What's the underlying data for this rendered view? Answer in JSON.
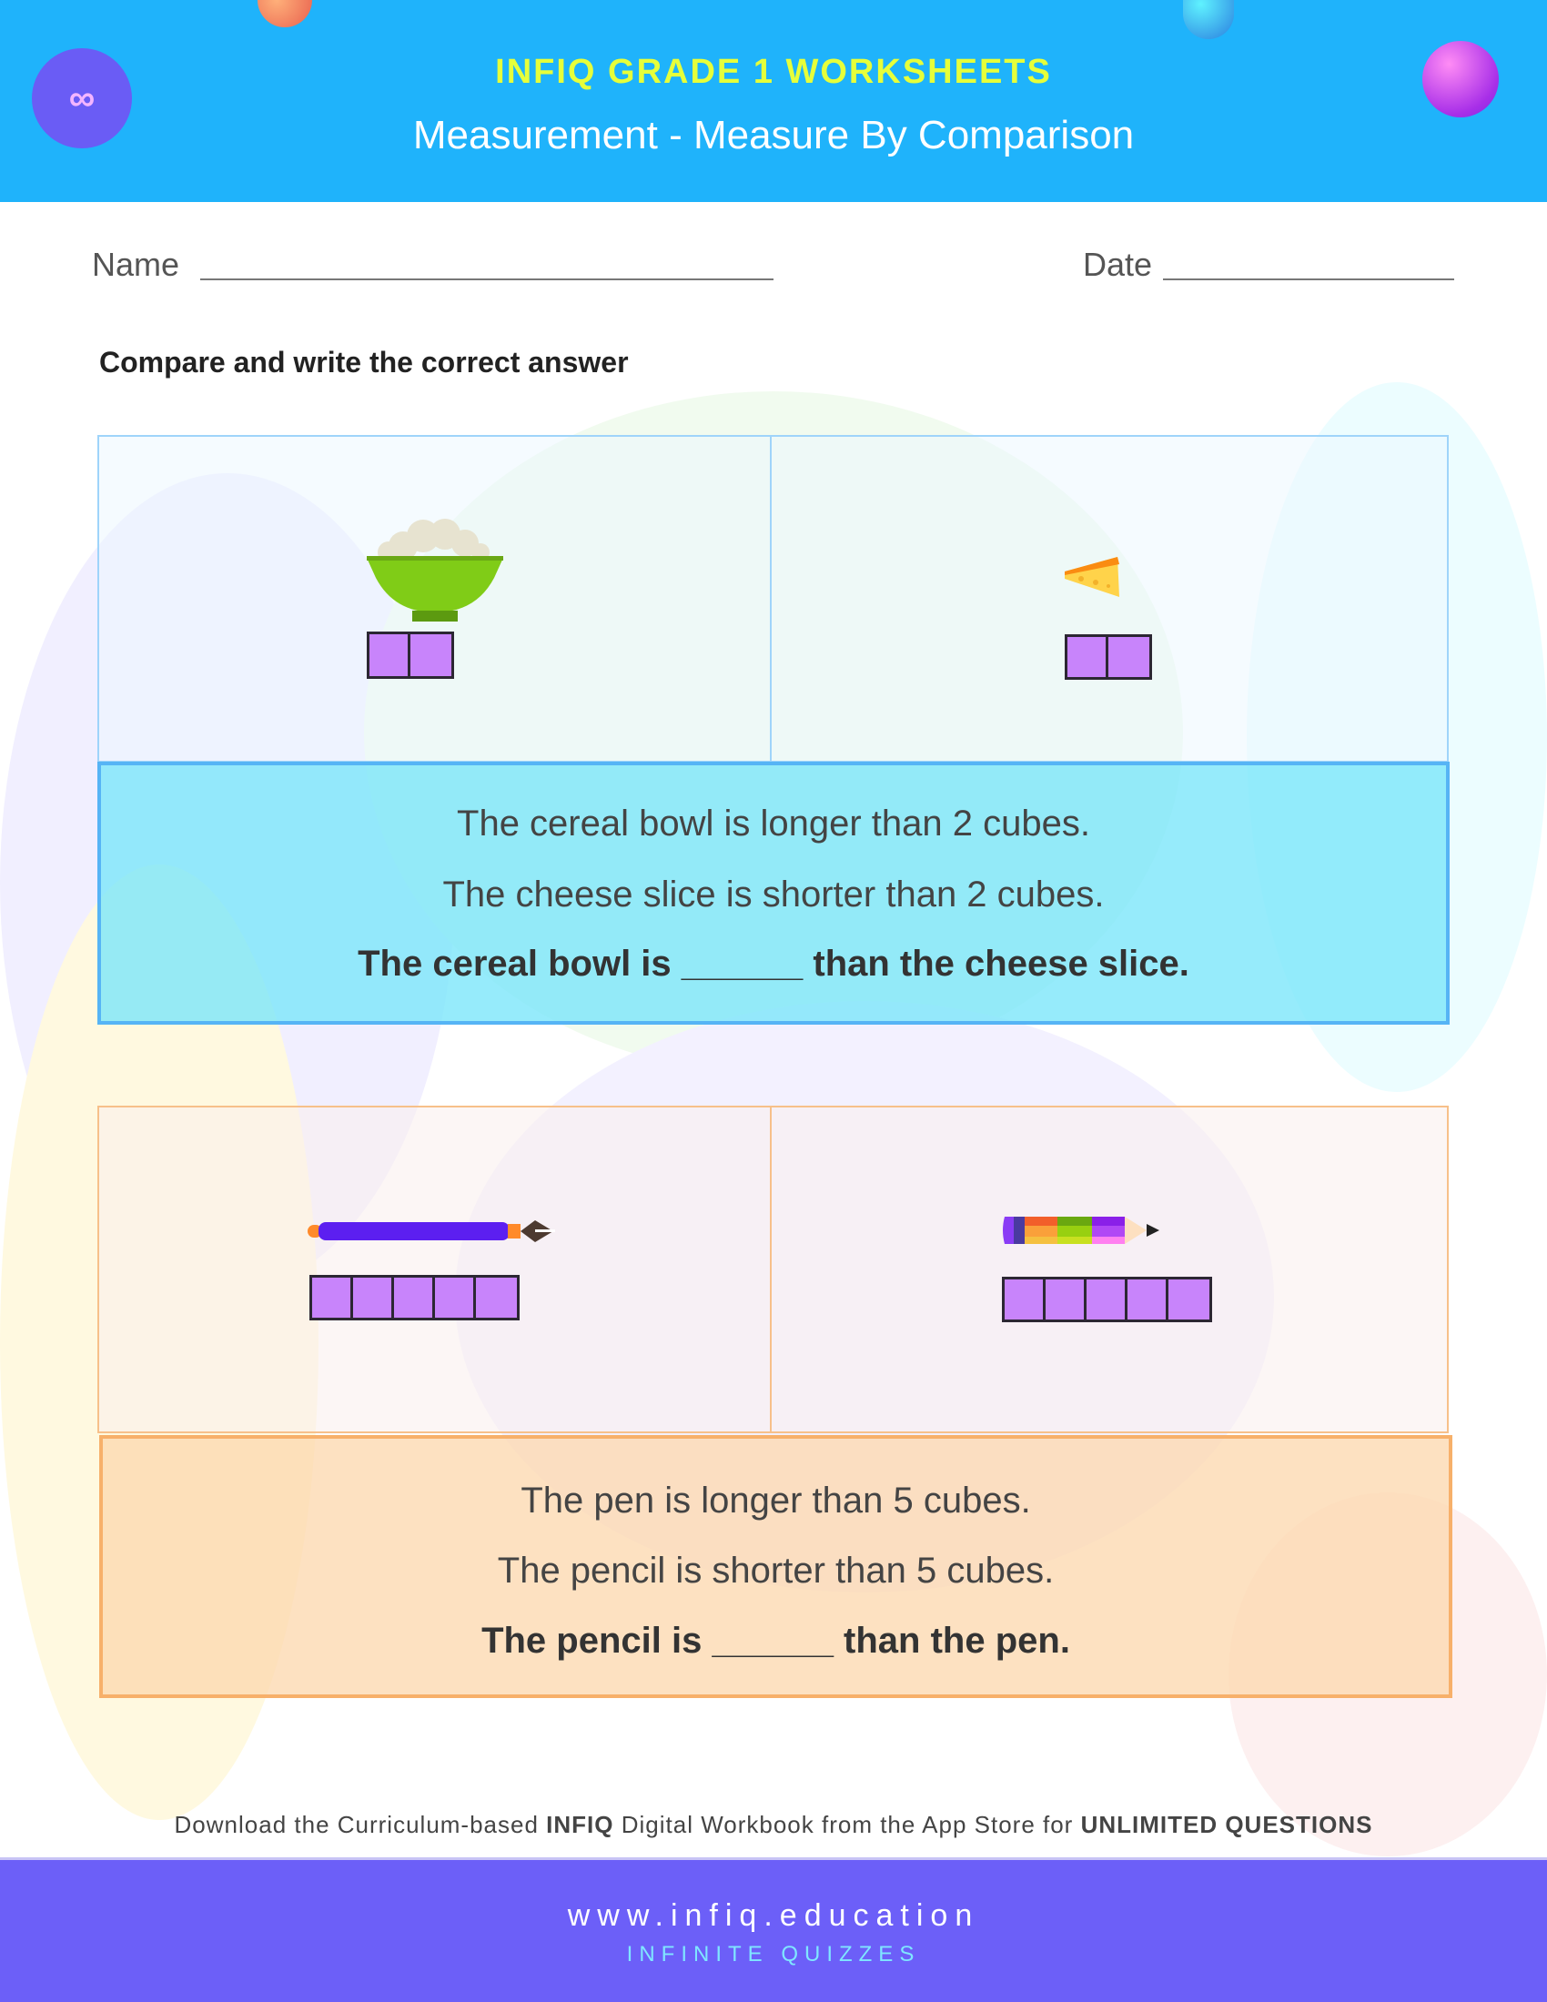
{
  "header": {
    "subtitle": "INFIQ GRADE 1 WORKSHEETS",
    "title": "Measurement - Measure By Comparison",
    "logo_text": "∞"
  },
  "form": {
    "name_label": "Name",
    "date_label": "Date"
  },
  "instruction": "Compare and write the correct answer",
  "questions": [
    {
      "left_object": "cereal bowl",
      "left_cubes": 2,
      "right_object": "cheese slice",
      "right_cubes": 2,
      "lines": [
        "The cereal bowl is longer than 2 cubes.",
        "The cheese slice is shorter than 2 cubes.",
        "The cereal bowl is ______ than the cheese slice."
      ],
      "accent": "#56b4f5"
    },
    {
      "left_object": "pen",
      "left_cubes": 5,
      "right_object": "pencil",
      "right_cubes": 5,
      "lines": [
        "The pen is longer than 5 cubes.",
        "The pencil is shorter than 5 cubes.",
        "The pencil is ______ than the pen."
      ],
      "accent": "#f7b06a"
    }
  ],
  "footer": {
    "promo_prefix": "Download the Curriculum-based ",
    "promo_brand": "INFIQ",
    "promo_middle": " Digital Workbook from the App Store for ",
    "promo_emphasis": "UNLIMITED QUESTIONS",
    "url": "www.infiq.education",
    "tagline": "INFINITE QUIZZES"
  },
  "colors": {
    "header": "#1fb3fb",
    "footer": "#6c5ff8",
    "cube": "#c884fb"
  }
}
